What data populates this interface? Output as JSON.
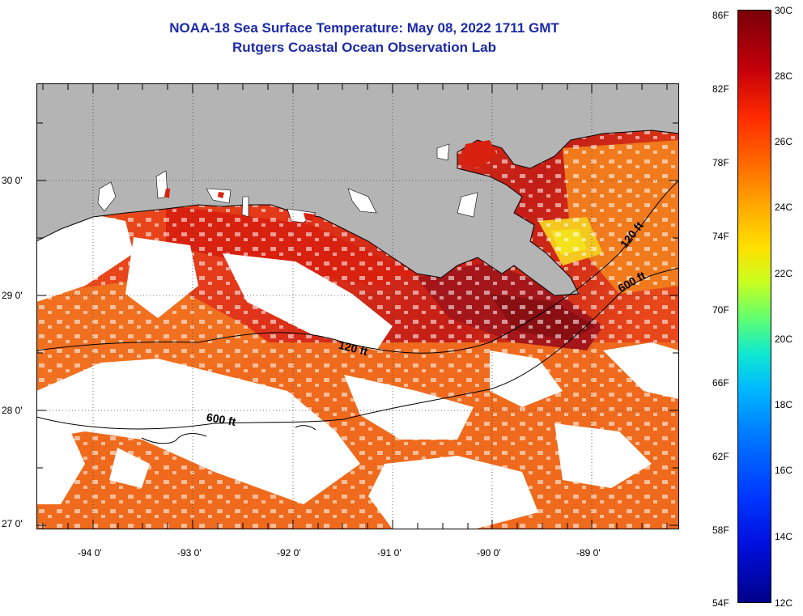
{
  "header": {
    "title": "NOAA-18 Sea Surface Temperature:  May 08, 2022 1711 GMT",
    "subtitle": "Rutgers Coastal Ocean Observation Lab"
  },
  "map": {
    "region": "Northern Gulf of Mexico / Louisiana coast",
    "lon_labels": [
      "-94 0'",
      "-93 0'",
      "-92 0'",
      "-91 0'",
      "-90 0'",
      "-89 0'"
    ],
    "lat_labels": [
      "30 0'",
      "29 0'",
      "28 0'",
      "27 0'"
    ],
    "contour_labels": {
      "c120_west": "120 ft",
      "c120_east": "120 ft",
      "c600_west": "600 ft",
      "c600_east": "600 ft"
    },
    "colors": {
      "land": "#b4b4b4",
      "clouds": "#ffffff",
      "sst_warm": "#d8270f",
      "sst_mid": "#f05a18",
      "sst_hot": "#8b0f12",
      "sst_cool": "#f4e21d"
    }
  },
  "colorbar": {
    "fahrenheit_labels": [
      "86F",
      "82F",
      "78F",
      "74F",
      "70F",
      "66F",
      "62F",
      "58F",
      "54F"
    ],
    "celsius_labels": [
      "30C",
      "28C",
      "26C",
      "24C",
      "22C",
      "20C",
      "18C",
      "16C",
      "14C",
      "12C"
    ],
    "range_c": [
      12,
      30
    ],
    "range_f": [
      54,
      86
    ]
  }
}
